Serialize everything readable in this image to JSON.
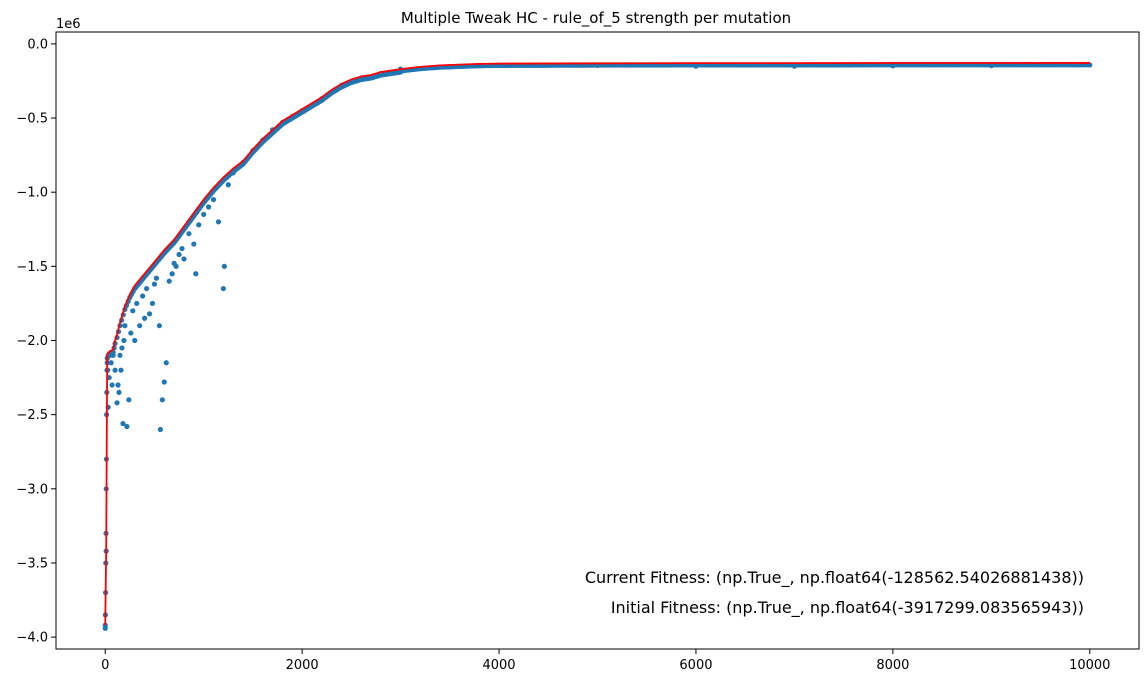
{
  "chart_data": {
    "type": "scatter",
    "title": "Multiple Tweak HC - rule_of_5 strength per mutation",
    "xlabel": "",
    "ylabel": "",
    "y_offset_label": "1e6",
    "xlim": [
      -500,
      10500
    ],
    "ylim": [
      -4.08,
      0.08
    ],
    "x_ticks": [
      0,
      2000,
      4000,
      6000,
      8000,
      10000
    ],
    "x_tick_labels": [
      "0",
      "2000",
      "4000",
      "6000",
      "8000",
      "10000"
    ],
    "y_ticks": [
      0.0,
      -0.5,
      -1.0,
      -1.5,
      -2.0,
      -2.5,
      -3.0,
      -3.5,
      -4.0
    ],
    "y_tick_labels": [
      "0.0",
      "−0.5",
      "−1.0",
      "−1.5",
      "−2.0",
      "−2.5",
      "−3.0",
      "−3.5",
      "−4.0"
    ],
    "grid": false,
    "colors": {
      "points": "#1f77b4",
      "best_line": "#ff0000"
    },
    "best_curve": {
      "x": [
        0,
        10,
        20,
        30,
        40,
        50,
        60,
        80,
        100,
        120,
        150,
        200,
        250,
        300,
        400,
        500,
        600,
        700,
        800,
        900,
        1000,
        1100,
        1200,
        1300,
        1400,
        1500,
        1600,
        1700,
        1800,
        1900,
        2000,
        2100,
        2200,
        2300,
        2400,
        2500,
        2600,
        2700,
        2800,
        2900,
        3000,
        3200,
        3400,
        3600,
        3800,
        4000,
        5000,
        6000,
        7000,
        8000,
        9000,
        10000
      ],
      "y": [
        -3.92,
        -3.4,
        -2.1,
        -2.08,
        -2.08,
        -2.07,
        -2.07,
        -2.06,
        -2.0,
        -1.96,
        -1.88,
        -1.77,
        -1.69,
        -1.63,
        -1.55,
        -1.47,
        -1.39,
        -1.32,
        -1.23,
        -1.14,
        -1.05,
        -0.97,
        -0.9,
        -0.84,
        -0.79,
        -0.71,
        -0.64,
        -0.58,
        -0.52,
        -0.48,
        -0.44,
        -0.4,
        -0.36,
        -0.31,
        -0.27,
        -0.24,
        -0.22,
        -0.21,
        -0.19,
        -0.18,
        -0.17,
        -0.155,
        -0.145,
        -0.14,
        -0.135,
        -0.133,
        -0.131,
        -0.13,
        -0.13,
        -0.129,
        -0.129,
        -0.1286
      ]
    },
    "points_series": {
      "x": [
        0,
        2,
        4,
        6,
        8,
        10,
        12,
        14,
        16,
        18,
        20,
        25,
        30,
        40,
        50,
        60,
        70,
        80,
        90,
        100,
        120,
        130,
        140,
        150,
        160,
        170,
        180,
        190,
        200,
        220,
        240,
        260,
        280,
        300,
        320,
        350,
        380,
        400,
        420,
        450,
        480,
        500,
        520,
        550,
        560,
        580,
        600,
        620,
        650,
        680,
        700,
        720,
        750,
        780,
        800,
        850,
        900,
        920,
        950,
        1000,
        1050,
        1100,
        1150,
        1200,
        1210,
        1250,
        1300,
        1400,
        1500,
        1600,
        1700,
        1800,
        1900,
        2000,
        2200,
        2400,
        2600,
        2800,
        3000,
        3500,
        4000,
        5000,
        6000,
        7000,
        8000,
        9000,
        10000
      ],
      "y": [
        -3.92,
        -3.85,
        -3.7,
        -3.5,
        -3.3,
        -3.0,
        -2.8,
        -2.5,
        -2.35,
        -2.2,
        -2.15,
        -2.2,
        -2.45,
        -2.25,
        -2.1,
        -2.15,
        -2.3,
        -2.1,
        -2.05,
        -2.2,
        -2.42,
        -2.3,
        -2.35,
        -2.1,
        -2.2,
        -2.05,
        -2.56,
        -2.0,
        -1.9,
        -2.58,
        -2.4,
        -1.95,
        -1.8,
        -2.0,
        -1.75,
        -1.9,
        -1.7,
        -1.85,
        -1.65,
        -1.82,
        -1.75,
        -1.62,
        -1.58,
        -1.9,
        -2.6,
        -2.4,
        -2.28,
        -2.15,
        -1.6,
        -1.55,
        -1.48,
        -1.5,
        -1.42,
        -1.38,
        -1.45,
        -1.28,
        -1.35,
        -1.55,
        -1.22,
        -1.15,
        -1.1,
        -1.05,
        -1.2,
        -1.65,
        -1.5,
        -0.95,
        -0.87,
        -0.8,
        -0.72,
        -0.65,
        -0.58,
        -0.53,
        -0.49,
        -0.45,
        -0.37,
        -0.28,
        -0.23,
        -0.2,
        -0.17,
        -0.155,
        -0.145,
        -0.145,
        -0.15,
        -0.15,
        -0.148,
        -0.147,
        -0.142
      ]
    }
  },
  "annotations": {
    "current_fitness": "Current Fitness: (np.True_, np.float64(-128562.54026881438))",
    "initial_fitness": "Initial Fitness: (np.True_, np.float64(-3917299.083565943))"
  }
}
